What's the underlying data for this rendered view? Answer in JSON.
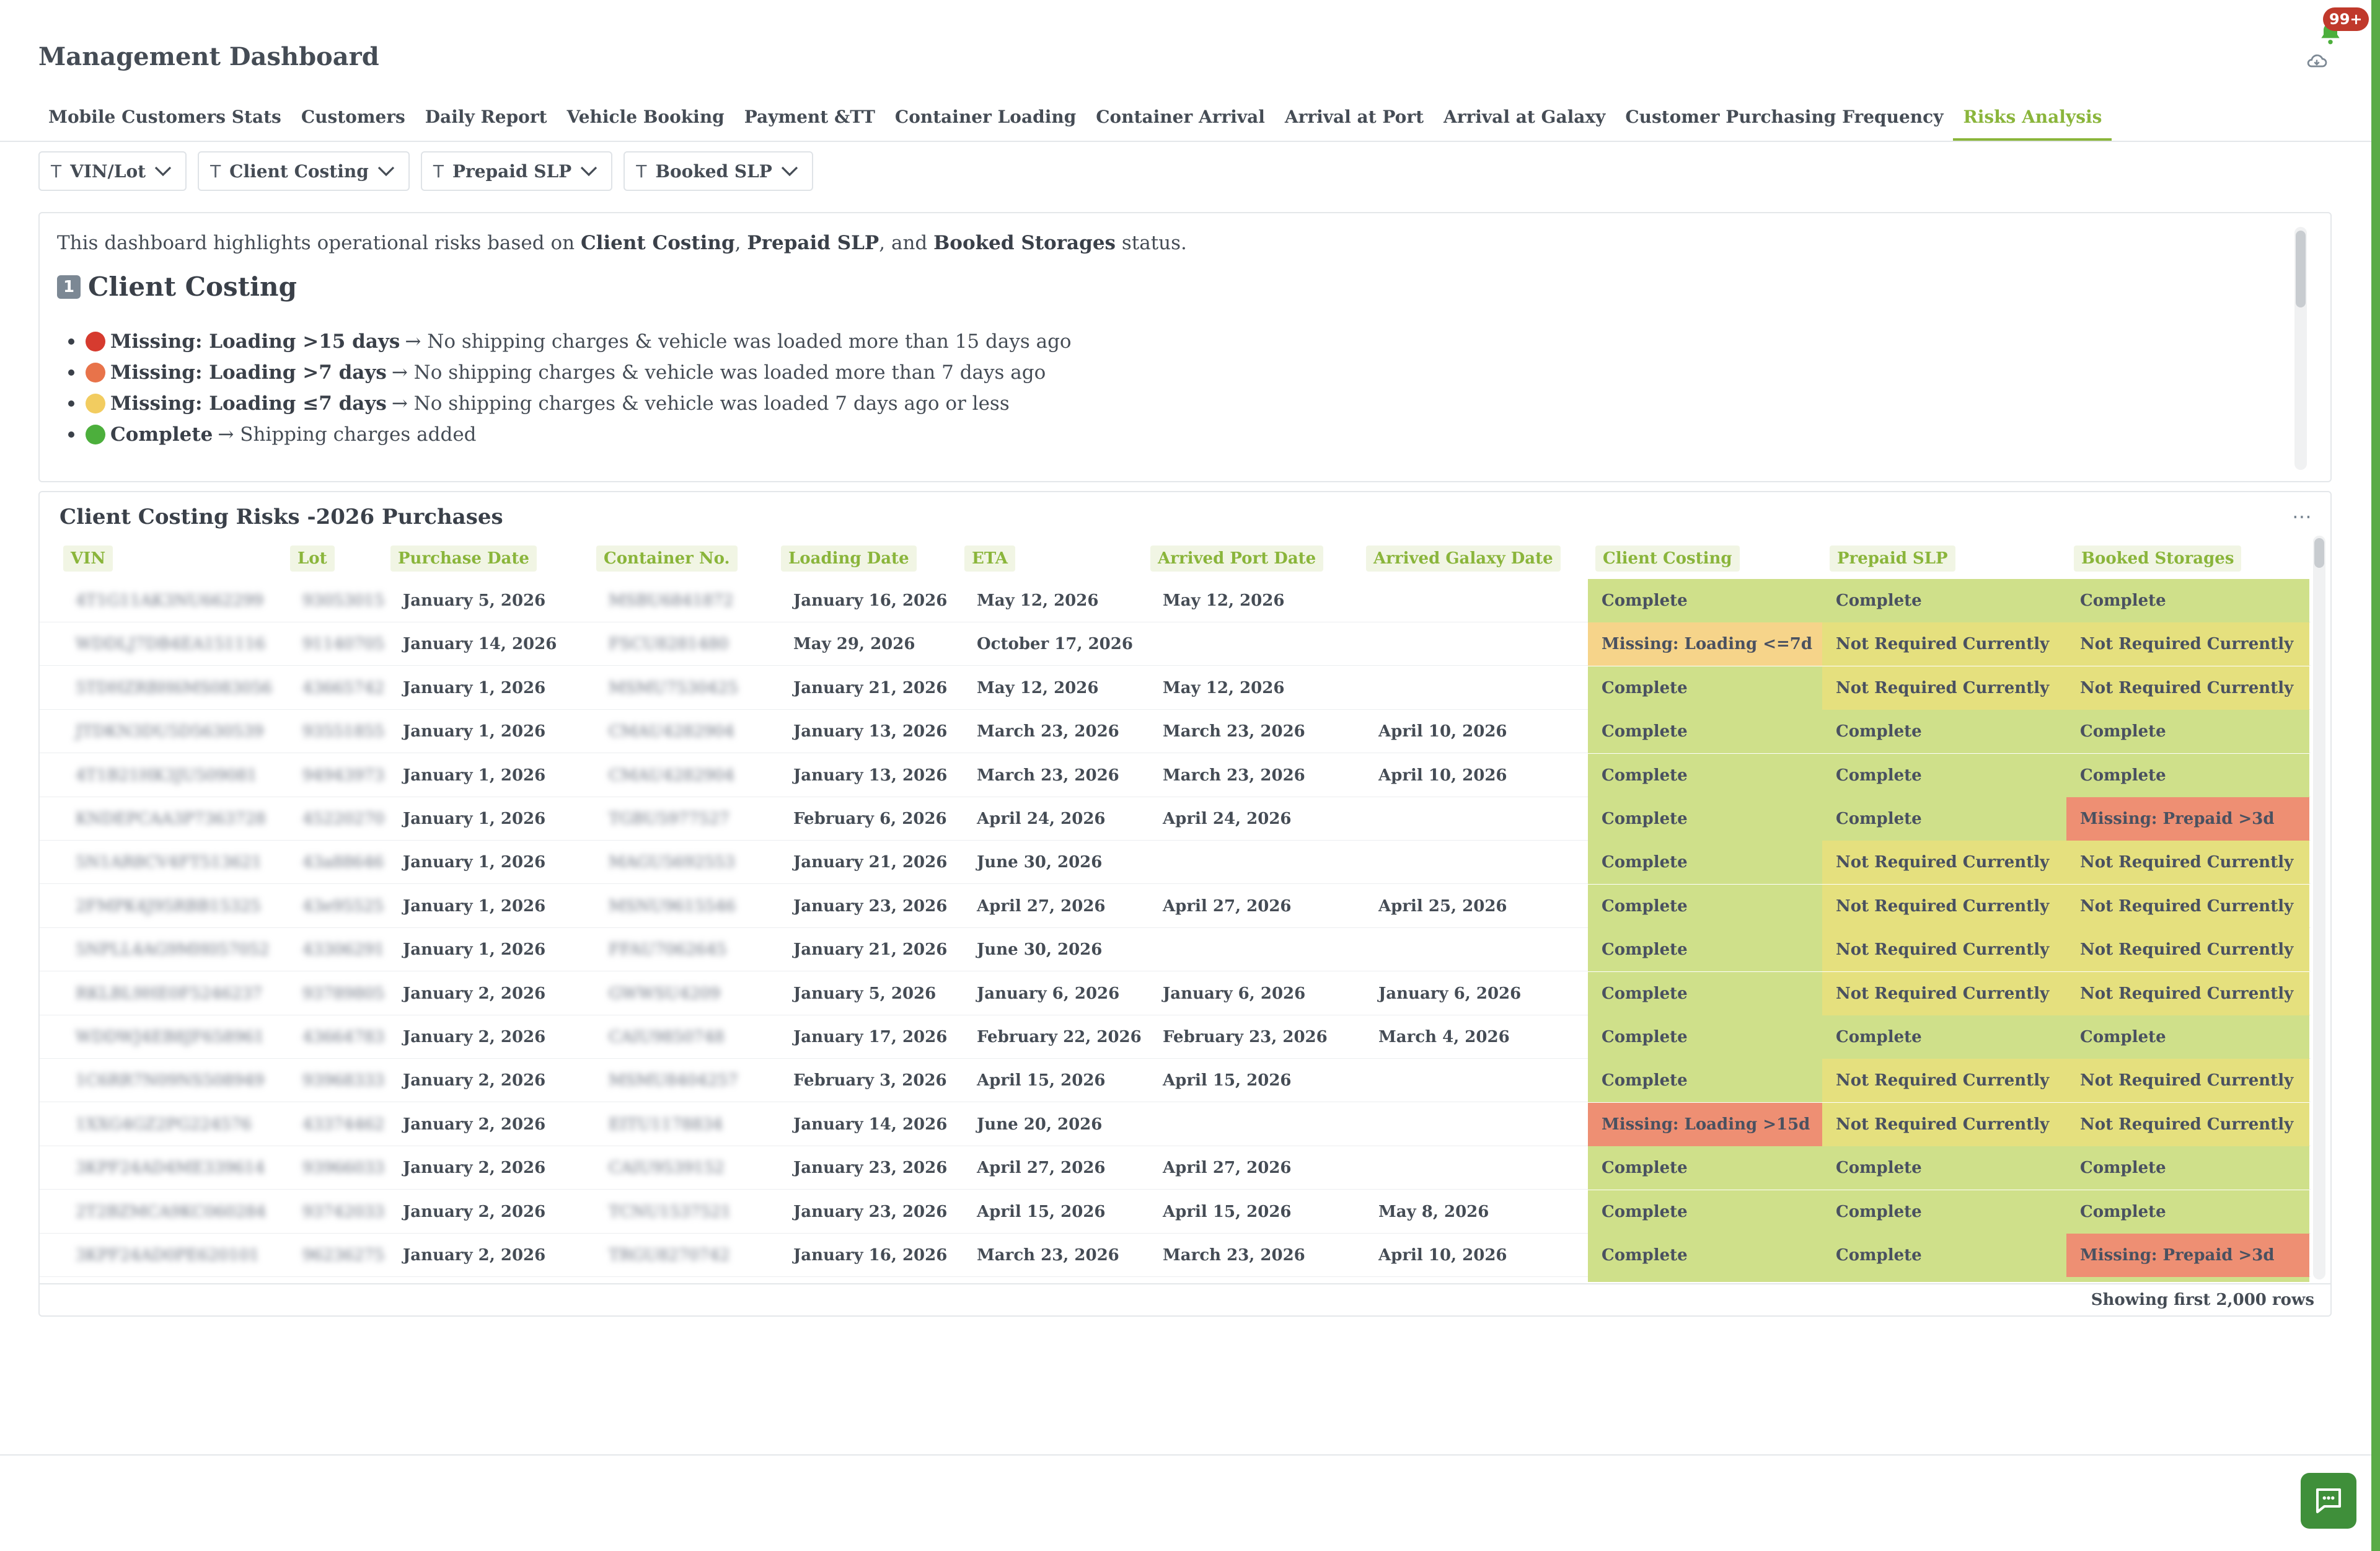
{
  "header": {
    "title": "Management Dashboard",
    "notifications_badge": "99+"
  },
  "tabs": [
    {
      "label": "Mobile Customers Stats",
      "active": false
    },
    {
      "label": "Customers",
      "active": false
    },
    {
      "label": "Daily Report",
      "active": false
    },
    {
      "label": "Vehicle Booking",
      "active": false
    },
    {
      "label": "Payment &TT",
      "active": false
    },
    {
      "label": "Container Loading",
      "active": false
    },
    {
      "label": "Container Arrival",
      "active": false
    },
    {
      "label": "Arrival at Port",
      "active": false
    },
    {
      "label": "Arrival at Galaxy",
      "active": false
    },
    {
      "label": "Customer Purchasing Frequency",
      "active": false
    },
    {
      "label": "Risks Analysis",
      "active": true
    }
  ],
  "filters": [
    {
      "label": "VIN/Lot"
    },
    {
      "label": "Client Costing"
    },
    {
      "label": "Prepaid SLP"
    },
    {
      "label": "Booked SLP"
    }
  ],
  "info": {
    "intro_prefix": "This dashboard highlights operational risks based on ",
    "intro_b1": "Client Costing",
    "intro_sep1": ", ",
    "intro_b2": "Prepaid SLP",
    "intro_sep2": ", and ",
    "intro_b3": "Booked Storages",
    "intro_suffix": " status.",
    "section_number": "1",
    "section_title": "Client Costing",
    "items": [
      {
        "dot_color": "#d63b2f",
        "label": "Missing: Loading >15 days",
        "desc": "→ No shipping charges & vehicle was loaded more than 15 days ago"
      },
      {
        "dot_color": "#e8734a",
        "label": "Missing: Loading >7 days",
        "desc": "→ No shipping charges & vehicle was loaded more than 7 days ago"
      },
      {
        "dot_color": "#f2cc60",
        "label": "Missing: Loading ≤7 days",
        "desc": "→ No shipping charges & vehicle was loaded 7 days ago or less"
      },
      {
        "dot_color": "#4caf3c",
        "label": "Complete",
        "desc": "→ Shipping charges added"
      }
    ]
  },
  "table": {
    "title": "Client Costing Risks -2026 Purchases",
    "more_icon": "ellipsis-icon",
    "columns": [
      "VIN",
      "Lot",
      "Purchase Date",
      "Container No.",
      "Loading Date",
      "ETA",
      "Arrived Port Date",
      "Arrived Galaxy Date",
      "Client Costing",
      "Prepaid SLP",
      "Booked Storages"
    ],
    "status_colors": {
      "Complete": "#cfe08a",
      "Not Required Currently": "#e5e07e",
      "Missing: Loading <=7d": "#f6d48a",
      "Missing: Loading >15d": "#ee8f73",
      "Missing: Prepaid >3d": "#ee8f73"
    },
    "rows": [
      {
        "vin": "4T1G11AK3NU662299",
        "lot": "93053015",
        "purchase": "January 5, 2026",
        "container": "MSBU6841872",
        "loading": "January 16, 2026",
        "eta": "May 12, 2026",
        "port": "May 12, 2026",
        "galaxy": "",
        "costing": "Complete",
        "prepaid": "Complete",
        "storages": "Complete"
      },
      {
        "vin": "WDDLJ7DB4EA151116",
        "lot": "91140705",
        "purchase": "January 14, 2026",
        "container": "FSCU8281480",
        "loading": "May 29, 2026",
        "eta": "October 17, 2026",
        "port": "",
        "galaxy": "",
        "costing": "Missing: Loading <=7d",
        "prepaid": "Not Required Currently",
        "storages": "Not Required Currently"
      },
      {
        "vin": "5TDHZRBH6MS083056",
        "lot": "43665742",
        "purchase": "January 1, 2026",
        "container": "MSMU7530425",
        "loading": "January 21, 2026",
        "eta": "May 12, 2026",
        "port": "May 12, 2026",
        "galaxy": "",
        "costing": "Complete",
        "prepaid": "Not Required Currently",
        "storages": "Not Required Currently"
      },
      {
        "vin": "JTDKN3DU5D5630539",
        "lot": "93551855",
        "purchase": "January 1, 2026",
        "container": "CMAU4282904",
        "loading": "January 13, 2026",
        "eta": "March 23, 2026",
        "port": "March 23, 2026",
        "galaxy": "April 10, 2026",
        "costing": "Complete",
        "prepaid": "Complete",
        "storages": "Complete"
      },
      {
        "vin": "4T1B21HK3JU509081",
        "lot": "94943973",
        "purchase": "January 1, 2026",
        "container": "CMAU4282904",
        "loading": "January 13, 2026",
        "eta": "March 23, 2026",
        "port": "March 23, 2026",
        "galaxy": "April 10, 2026",
        "costing": "Complete",
        "prepaid": "Complete",
        "storages": "Complete"
      },
      {
        "vin": "KNDEPCAA3P7363728",
        "lot": "45220270",
        "purchase": "January 1, 2026",
        "container": "TGBU5977527",
        "loading": "February 6, 2026",
        "eta": "April 24, 2026",
        "port": "April 24, 2026",
        "galaxy": "",
        "costing": "Complete",
        "prepaid": "Complete",
        "storages": "Missing: Prepaid >3d"
      },
      {
        "vin": "5N1AR8CV4FT513621",
        "lot": "43a88646",
        "purchase": "January 1, 2026",
        "container": "MAGU5692553",
        "loading": "January 21, 2026",
        "eta": "June 30, 2026",
        "port": "",
        "galaxy": "",
        "costing": "Complete",
        "prepaid": "Not Required Currently",
        "storages": "Not Required Currently"
      },
      {
        "vin": "2FMPK4J95RBB15325",
        "lot": "43e95525",
        "purchase": "January 1, 2026",
        "container": "MSNU9615546",
        "loading": "January 23, 2026",
        "eta": "April 27, 2026",
        "port": "April 27, 2026",
        "galaxy": "April 25, 2026",
        "costing": "Complete",
        "prepaid": "Not Required Currently",
        "storages": "Not Required Currently"
      },
      {
        "vin": "5NPLL4AG9MH057052",
        "lot": "43306291",
        "purchase": "January 1, 2026",
        "container": "FFAU7062645",
        "loading": "January 21, 2026",
        "eta": "June 30, 2026",
        "port": "",
        "galaxy": "",
        "costing": "Complete",
        "prepaid": "Not Required Currently",
        "storages": "Not Required Currently"
      },
      {
        "vin": "RKLBL9HE0F5246237",
        "lot": "93789805",
        "purchase": "January 2, 2026",
        "container": "GWWSU4209",
        "loading": "January 5, 2026",
        "eta": "January 6, 2026",
        "port": "January 6, 2026",
        "galaxy": "January 6, 2026",
        "costing": "Complete",
        "prepaid": "Not Required Currently",
        "storages": "Not Required Currently"
      },
      {
        "vin": "WDDWJ4EB8JF658961",
        "lot": "43664783",
        "purchase": "January 2, 2026",
        "container": "CAIU9850748",
        "loading": "January 17, 2026",
        "eta": "February 22, 2026",
        "port": "February 23, 2026",
        "galaxy": "March 4, 2026",
        "costing": "Complete",
        "prepaid": "Complete",
        "storages": "Complete"
      },
      {
        "vin": "1C6RR7N09NS508949",
        "lot": "93968333",
        "purchase": "January 2, 2026",
        "container": "MSMU8404257",
        "loading": "February 3, 2026",
        "eta": "April 15, 2026",
        "port": "April 15, 2026",
        "galaxy": "",
        "costing": "Complete",
        "prepaid": "Not Required Currently",
        "storages": "Not Required Currently"
      },
      {
        "vin": "1XXG4GZ2PG224576",
        "lot": "43374462",
        "purchase": "January 2, 2026",
        "container": "EITU1178834",
        "loading": "January 14, 2026",
        "eta": "June 20, 2026",
        "port": "",
        "galaxy": "",
        "costing": "Missing: Loading >15d",
        "prepaid": "Not Required Currently",
        "storages": "Not Required Currently"
      },
      {
        "vin": "3KPF24AD4ME339614",
        "lot": "93966033",
        "purchase": "January 2, 2026",
        "container": "CAIU9539152",
        "loading": "January 23, 2026",
        "eta": "April 27, 2026",
        "port": "April 27, 2026",
        "galaxy": "",
        "costing": "Complete",
        "prepaid": "Complete",
        "storages": "Complete"
      },
      {
        "vin": "2T2BZMCA9KC060284",
        "lot": "93742033",
        "purchase": "January 2, 2026",
        "container": "TCNU1537521",
        "loading": "January 23, 2026",
        "eta": "April 15, 2026",
        "port": "April 15, 2026",
        "galaxy": "May 8, 2026",
        "costing": "Complete",
        "prepaid": "Complete",
        "storages": "Complete"
      },
      {
        "vin": "3KPF24AD0PE620101",
        "lot": "96236275",
        "purchase": "January 2, 2026",
        "container": "TRGU8270742",
        "loading": "January 16, 2026",
        "eta": "March 23, 2026",
        "port": "March 23, 2026",
        "galaxy": "April 10, 2026",
        "costing": "Complete",
        "prepaid": "Complete",
        "storages": "Missing: Prepaid >3d"
      }
    ],
    "footer": "Showing first 2,000 rows"
  }
}
